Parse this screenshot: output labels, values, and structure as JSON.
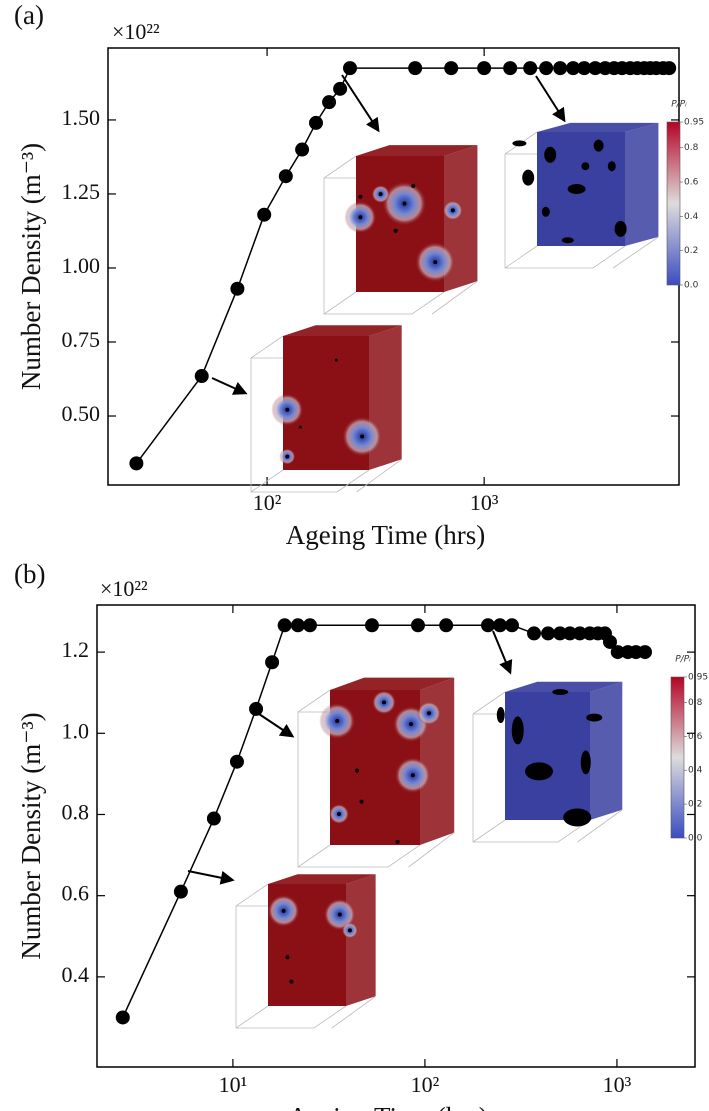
{
  "chart_data": [
    {
      "type": "line",
      "panel_label": "(a)",
      "y_multiplier": "×10²²",
      "x_label": "Ageing Time (hrs)",
      "y_label": "Number Density (m⁻³)",
      "x_scale": "log",
      "color": "#000000",
      "x": [
        25,
        50,
        73,
        97,
        122,
        145,
        168,
        193,
        217,
        241,
        481,
        705,
        1000,
        1318,
        1630,
        1930,
        2240,
        2570,
        2890,
        3250,
        3610,
        3970,
        4320,
        4710,
        5070,
        5460,
        5820,
        6200,
        6680,
        7120
      ],
      "values": [
        0.34,
        0.635,
        0.93,
        1.18,
        1.31,
        1.4,
        1.49,
        1.56,
        1.605,
        1.675,
        1.675,
        1.675,
        1.675,
        1.675,
        1.675,
        1.675,
        1.675,
        1.675,
        1.675,
        1.675,
        1.675,
        1.675,
        1.675,
        1.675,
        1.675,
        1.675,
        1.675,
        1.675,
        1.675,
        1.675
      ],
      "xlim": [
        18.5,
        7900
      ],
      "ylim": [
        0.267,
        1.743
      ],
      "xticks": [
        {
          "value": 100,
          "label": "10²"
        },
        {
          "value": 1000,
          "label": "10³"
        }
      ],
      "yticks": [
        {
          "value": 0.5,
          "label": "0.50"
        },
        0.75,
        {
          "value": 1,
          "label": "1.00"
        },
        1.25,
        {
          "value": 1.5,
          "label": "1.50"
        }
      ],
      "colorbar": {
        "label": "P/Pᵢ",
        "lim": [
          0,
          0.95
        ],
        "ticks": [
          {
            "value": 0,
            "label": "0.0"
          },
          {
            "value": 0.2,
            "label": "0.2"
          },
          {
            "value": 0.4,
            "label": "0.4"
          },
          {
            "value": 0.6,
            "label": "0.6"
          },
          {
            "value": 0.8,
            "label": "0.8"
          },
          0.95
        ]
      }
    },
    {
      "type": "line",
      "panel_label": "(b)",
      "y_multiplier": "×10²²",
      "x_label": "Ageing Time (hrs)",
      "y_label": "Number Density (m⁻³)",
      "x_scale": "log",
      "color": "#000000",
      "x": [
        2.67,
        5.36,
        7.96,
        10.5,
        13.2,
        16,
        18.6,
        21.8,
        25.2,
        53,
        92,
        129,
        213,
        246,
        284,
        370,
        438,
        505,
        569,
        641,
        722,
        796,
        866,
        920,
        1010,
        1140,
        1256,
        1400
      ],
      "values": [
        0.3,
        0.61,
        0.79,
        0.93,
        1.06,
        1.175,
        1.266,
        1.266,
        1.266,
        1.266,
        1.266,
        1.266,
        1.266,
        1.266,
        1.266,
        1.246,
        1.246,
        1.246,
        1.246,
        1.246,
        1.246,
        1.246,
        1.246,
        1.225,
        1.2,
        1.2,
        1.2,
        1.2
      ],
      "xlim": [
        1.96,
        2550
      ],
      "ylim": [
        0.178,
        1.316
      ],
      "xticks": [
        {
          "value": 10,
          "label": "10¹"
        },
        {
          "value": 100,
          "label": "10²"
        },
        {
          "value": 1000,
          "label": "10³"
        }
      ],
      "yticks": [
        0.4,
        0.6,
        0.8,
        {
          "value": 1,
          "label": "1.0"
        },
        1.2
      ],
      "colorbar": {
        "label": "P/Pᵢ",
        "lim": [
          0,
          0.95
        ],
        "ticks": [
          {
            "value": 0,
            "label": "0.0"
          },
          {
            "value": 0.2,
            "label": "0.2"
          },
          {
            "value": 0.4,
            "label": "0.4"
          },
          {
            "value": 0.6,
            "label": "0.6"
          },
          {
            "value": 0.8,
            "label": "0.8"
          },
          0.95
        ]
      }
    }
  ]
}
